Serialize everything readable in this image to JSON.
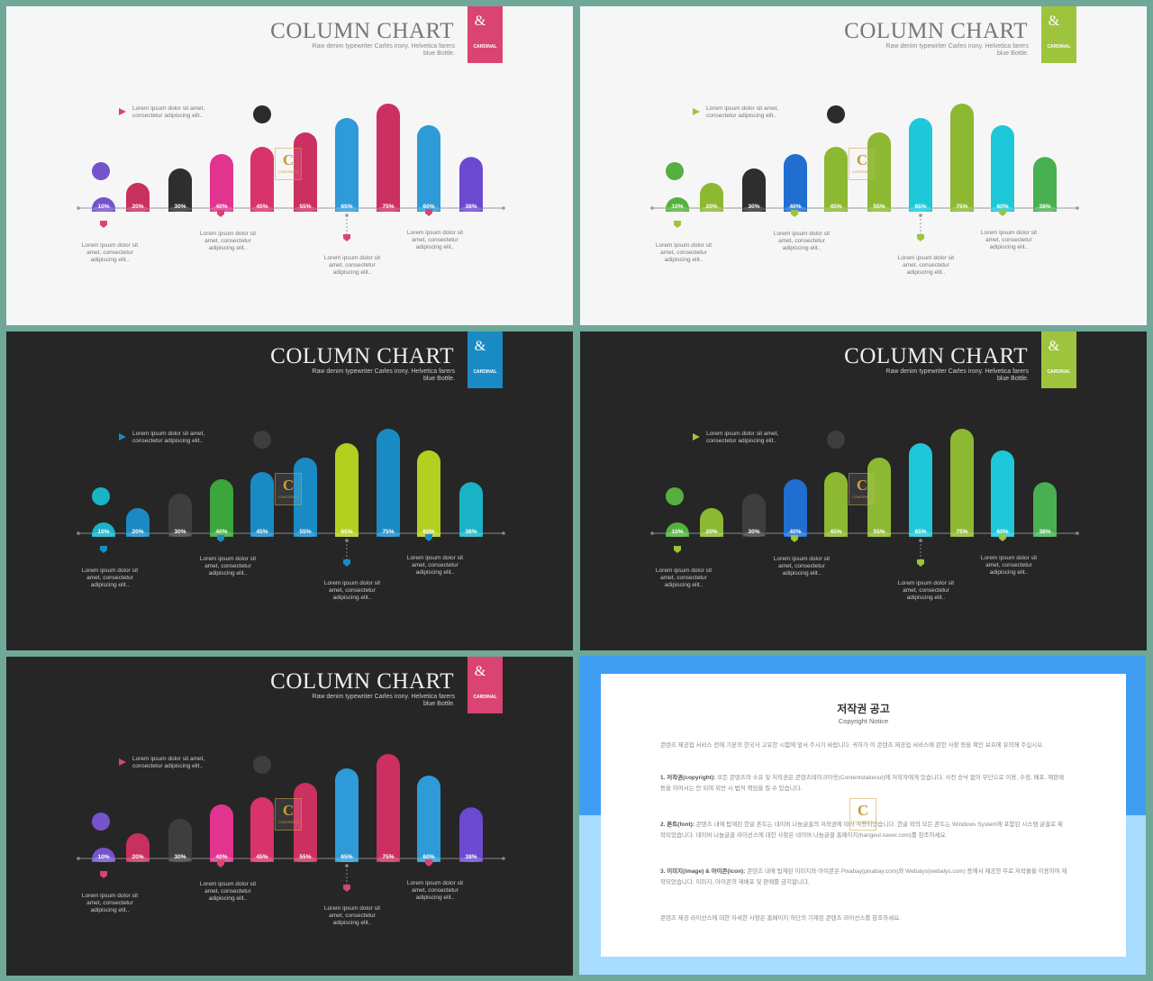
{
  "slide": {
    "title": "COLUMN CHART",
    "subtitle": "Raw denim typewriter Carles irony. Helvetica farers blue Bottle.",
    "tag_symbol": "&",
    "tag_label": "CARDINAL",
    "logo_letter": "C",
    "logo_text": "CONTENTS",
    "notes": {
      "top": "Lorem ipsum dolor sit amet, consectetur adipiscing elit..",
      "b1": "Lorem ipsum dolor sit amet, consectetur adipiscing elit..",
      "b2": "Lorem ipsum dolor sit amet, consectetur adipiscing elit..",
      "b3": "Lorem ipsum dolor sit amet, consectetur adipiscing elit..",
      "b4": "Lorem ipsum dolor sit amet, consectetur adipiscing elit.."
    }
  },
  "chart_data": {
    "type": "bar",
    "categories": [
      "10%",
      "20%",
      "30%",
      "40%",
      "45%",
      "55%",
      "65%",
      "75%",
      "60%",
      "38%"
    ],
    "values": [
      10,
      20,
      30,
      40,
      45,
      55,
      65,
      75,
      60,
      38
    ]
  },
  "variants": [
    {
      "theme": "light",
      "accent": "#d94472",
      "colors": [
        "#7453cc",
        "#c8305e",
        "#2e2e2e",
        "#e0348f",
        "#d8336a",
        "#cc3060",
        "#2e9ad8",
        "#cc3060",
        "#2e9ad8",
        "#6c4ad0"
      ],
      "top_circle": "#2b2b2b"
    },
    {
      "theme": "light",
      "accent": "#9dc43c",
      "colors": [
        "#55b040",
        "#8db832",
        "#2e2e2e",
        "#1f6ed0",
        "#8db832",
        "#8db832",
        "#1ec8d8",
        "#8db832",
        "#1ec8d8",
        "#48b050"
      ],
      "top_circle": "#2b2b2b"
    },
    {
      "theme": "dark",
      "accent": "#1a8ac4",
      "colors": [
        "#1ab3c5",
        "#1a8ac4",
        "#3e3e3e",
        "#3ca53c",
        "#1a8ac4",
        "#1a8ac4",
        "#b3cf20",
        "#1a8ac4",
        "#b3cf20",
        "#1ab3c5"
      ],
      "top_circle": "#3e3e3e"
    },
    {
      "theme": "dark",
      "accent": "#9dc43c",
      "colors": [
        "#55b040",
        "#8db832",
        "#3e3e3e",
        "#1f6ed0",
        "#8db832",
        "#8db832",
        "#1ec8d8",
        "#8db832",
        "#1ec8d8",
        "#48b050"
      ],
      "top_circle": "#3e3e3e"
    },
    {
      "theme": "dark",
      "accent": "#d94472",
      "colors": [
        "#7453cc",
        "#c8305e",
        "#3e3e3e",
        "#e0348f",
        "#d8336a",
        "#cc3060",
        "#2e9ad8",
        "#cc3060",
        "#2e9ad8",
        "#6c4ad0"
      ],
      "top_circle": "#3e3e3e"
    }
  ],
  "notice": {
    "title": "저작권 공고",
    "subtitle": "Copyright Notice",
    "intro": "콘텐츠 제공업 서비스 전에 기본의 한국사 고유한 시험에 앞서 주시기 바랍니다. 귀하가 이 콘텐츠 제공업 서비스에 관한 사항 등을 확인 보호에 유의해 주십시오.",
    "p1_head": "1. 저작권(copyright):",
    "p1": " 모든 콘텐츠의 소유 및 저작권은 콘텐츠테이크아웃(Contentstakeout)에 저작자에게 있습니다. 사전 승낙 없이 무단으로 이용, 수정, 배포, 재판매 등을 하여서는 안 되며 위반 시 법적 책임을 질 수 있습니다.",
    "p2_head": "2. 폰트(font):",
    "p2": " 콘텐츠 내에 탑재된 한글 폰트는 네이버 나눔글꼴의 저작권에 따라 사용되었습니다. 한글 외의 모든 폰트는 Windows System에 포함된 시스템 글꼴로 제작되었습니다. 네이버 나눔글꼴 라이선스에 대한 사항은 네이버 나눔글꼴 홈페이지(hangeul.naver.com)를 참조하세요.",
    "p3_head": "3. 이미지(image) & 아이콘(icon):",
    "p3": " 콘텐츠 내에 탑재된 이미지와 아이콘은 Pixabay(pixabay.com)와 Webalys(webalys.com) 등에서 제공한 무료 저작물을 이용하여 제작되었습니다. 이미지, 아이콘의 재배포 및 판매를 금지합니다.",
    "outro": "콘텐츠 제공 라이선스에 대한 자세한 사항은 홈페이지 하단의 기재된 콘텐츠 라이선스를 참조하세요."
  }
}
